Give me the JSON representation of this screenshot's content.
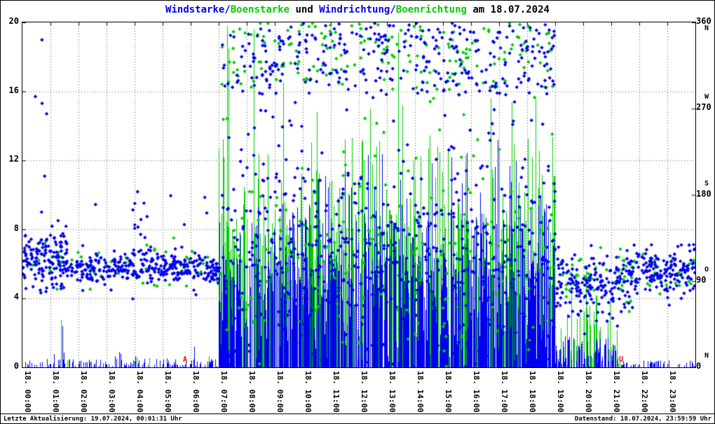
{
  "header": {
    "title_parts": [
      {
        "text": "Windstarke/",
        "color": "#0000ee"
      },
      {
        "text": "Boenstarke",
        "color": "#00cc00"
      },
      {
        "text": " und ",
        "color": "#000000"
      },
      {
        "text": "Windrichtung/",
        "color": "#0000ee"
      },
      {
        "text": "Boenrichtung",
        "color": "#00cc00"
      },
      {
        "text": " am 18.07.2024",
        "color": "#000000"
      }
    ]
  },
  "footer": {
    "left": "Letzte Aktualisierung: 19.07.2024, 00:01:31 Uhr",
    "right": "Datenstand: 18.07.2024, 23:59:59 Uhr"
  },
  "colors": {
    "wind": "#0000ee",
    "gust": "#00cc00",
    "marker": "#dd0000",
    "grid": "#555555",
    "axis": "#000000"
  },
  "chart_data": {
    "type": "mixed",
    "subtypes": [
      "scatter",
      "impulse"
    ],
    "title": "Windstarke/Boenstarke und Windrichtung/Boenrichtung am 18.07.2024",
    "grid": "dotted",
    "x": {
      "min_hour": 0,
      "max_hour": 24,
      "tick_interval_hours": 1,
      "tick_labels": [
        "18. 00:00",
        "18. 01:00",
        "18. 02:00",
        "18. 03:00",
        "18. 04:00",
        "18. 05:00",
        "18. 06:00",
        "18. 07:00",
        "18. 08:00",
        "18. 09:00",
        "18. 10:00",
        "18. 11:00",
        "18. 12:00",
        "18. 13:00",
        "18. 14:00",
        "18. 15:00",
        "18. 16:00",
        "18. 17:00",
        "18. 18:00",
        "18. 19:00",
        "18. 20:00",
        "18. 21:00",
        "18. 22:00",
        "18. 23:00"
      ]
    },
    "y_left": {
      "min": 0,
      "max": 20,
      "ticks": [
        0,
        4,
        8,
        12,
        16,
        20
      ],
      "grid_at": [
        4,
        8,
        12,
        16
      ]
    },
    "y_right": {
      "min": 0,
      "max": 360,
      "ticks": [
        {
          "v": 360,
          "compass": "N"
        },
        {
          "v": 270,
          "compass": "W"
        },
        {
          "v": 180,
          "compass": "S"
        },
        {
          "v": 90,
          "compass": "O"
        },
        {
          "v": 0,
          "compass": "N"
        }
      ]
    },
    "seed": 20240718,
    "series": [
      {
        "name": "Boenstarke",
        "type": "impulse",
        "axis": "left",
        "color_key": "gust",
        "segments": [
          {
            "t0": 0.0,
            "t1": 7.0,
            "n": 6,
            "dist": "uniform",
            "min": 0.1,
            "max": 0.8
          },
          {
            "t0": 7.0,
            "t1": 19.0,
            "n": 380,
            "dist": "uniform",
            "min": 0.5,
            "max": 9.0
          },
          {
            "t0": 7.0,
            "t1": 19.0,
            "n": 90,
            "dist": "uniform",
            "min": 8.0,
            "max": 13.5
          },
          {
            "t0": 19.0,
            "t1": 21.3,
            "n": 50,
            "dist": "uniform",
            "min": 0.2,
            "max": 4.5
          }
        ],
        "spikes": [
          [
            1.38,
            2.75
          ],
          [
            7.3,
            19.8
          ],
          [
            7.35,
            18.5
          ],
          [
            8.25,
            19.6
          ],
          [
            9.3,
            16.5
          ],
          [
            10.5,
            14.8
          ],
          [
            11.5,
            13.2
          ],
          [
            12.4,
            15.0
          ],
          [
            13.4,
            19.4
          ],
          [
            13.55,
            15.2
          ],
          [
            14.8,
            12.8
          ],
          [
            16.7,
            15.6
          ],
          [
            17.45,
            15.4
          ],
          [
            18.3,
            15.6
          ],
          [
            20.1,
            5.6
          ]
        ]
      },
      {
        "name": "Windstarke",
        "type": "impulse",
        "axis": "left",
        "color_key": "wind",
        "segments": [
          {
            "t0": 0.0,
            "t1": 7.0,
            "n": 120,
            "dist": "uniform",
            "min": 0.05,
            "max": 0.5
          },
          {
            "t0": 0.0,
            "t1": 7.0,
            "n": 8,
            "dist": "uniform",
            "min": 0.5,
            "max": 1.6
          },
          {
            "t0": 7.0,
            "t1": 19.0,
            "n": 600,
            "dist": "uniform",
            "min": 0.2,
            "max": 6.5
          },
          {
            "t0": 7.0,
            "t1": 19.0,
            "n": 140,
            "dist": "uniform",
            "min": 4.0,
            "max": 9.5
          },
          {
            "t0": 10.0,
            "t1": 18.6,
            "n": 30,
            "dist": "uniform",
            "min": 8.0,
            "max": 12.5
          },
          {
            "t0": 19.0,
            "t1": 21.3,
            "n": 70,
            "dist": "uniform",
            "min": 0.05,
            "max": 1.8
          },
          {
            "t0": 21.3,
            "t1": 24.0,
            "n": 50,
            "dist": "uniform",
            "min": 0.02,
            "max": 0.4
          }
        ],
        "spikes": [
          [
            1.42,
            2.4
          ],
          [
            16.95,
            13.2
          ],
          [
            17.6,
            12.0
          ]
        ]
      },
      {
        "name": "Boenrichtung",
        "type": "scatter",
        "axis": "right",
        "color_key": "gust",
        "segments": [
          {
            "t0": 0.0,
            "t1": 7.1,
            "n": 70,
            "dist": "normal",
            "mean": 108,
            "sd": 13
          },
          {
            "t0": 7.1,
            "t1": 19.0,
            "n": 160,
            "dist": "uniform",
            "min": 290,
            "max": 360
          },
          {
            "t0": 7.1,
            "t1": 19.0,
            "n": 90,
            "dist": "uniform",
            "min": 0,
            "max": 360
          },
          {
            "t0": 7.1,
            "t1": 19.0,
            "n": 110,
            "dist": "normal",
            "mean": 115,
            "sd": 40
          },
          {
            "t0": 19.0,
            "t1": 24.0,
            "n": 80,
            "dist": "normal",
            "mean": 95,
            "sd": 14
          }
        ]
      },
      {
        "name": "Windrichtung",
        "type": "scatter",
        "axis": "right",
        "color_key": "wind",
        "segments": [
          {
            "t0": 0.0,
            "t1": 1.6,
            "n": 150,
            "dist": "normal",
            "mean": 112,
            "sd": 16
          },
          {
            "t0": 0.3,
            "t1": 1.3,
            "n": 6,
            "dist": "uniform",
            "min": 150,
            "max": 350
          },
          {
            "t0": 1.6,
            "t1": 7.1,
            "n": 340,
            "dist": "normal",
            "mean": 103,
            "sd": 8
          },
          {
            "t0": 3.9,
            "t1": 4.4,
            "n": 14,
            "dist": "normal",
            "mean": 150,
            "sd": 30
          },
          {
            "t0": 2.0,
            "t1": 7.0,
            "n": 8,
            "dist": "uniform",
            "min": 60,
            "max": 190
          },
          {
            "t0": 7.1,
            "t1": 19.0,
            "n": 450,
            "dist": "normal",
            "mean": 115,
            "sd": 45
          },
          {
            "t0": 7.1,
            "t1": 19.0,
            "n": 280,
            "dist": "uniform",
            "min": 285,
            "max": 360
          },
          {
            "t0": 7.1,
            "t1": 19.0,
            "n": 200,
            "dist": "uniform",
            "min": 0,
            "max": 360
          },
          {
            "t0": 19.0,
            "t1": 21.6,
            "n": 170,
            "dist": "normal",
            "mean": 85,
            "sd": 16
          },
          {
            "t0": 21.6,
            "t1": 24.0,
            "n": 170,
            "dist": "normal",
            "mean": 100,
            "sd": 13
          }
        ]
      }
    ],
    "sun_markers": [
      {
        "label": "A",
        "hour": 5.8
      },
      {
        "label": "U",
        "hour": 21.35
      }
    ]
  }
}
